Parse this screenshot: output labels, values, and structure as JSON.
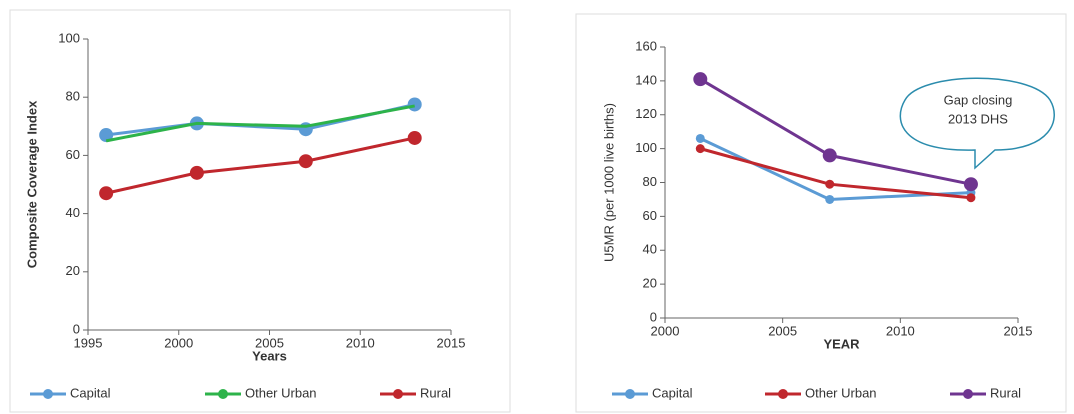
{
  "chart_data": [
    {
      "type": "line",
      "x_label": "Years",
      "y_label": "Composite Coverage Index",
      "xlim": [
        1995,
        2015
      ],
      "xticks": [
        1995,
        2000,
        2005,
        2010,
        2015
      ],
      "ylim": [
        0,
        100
      ],
      "yticks": [
        0,
        20,
        40,
        60,
        80,
        100
      ],
      "x": [
        1996,
        2001,
        2007,
        2013
      ],
      "series": [
        {
          "name": "Capital",
          "color": "#5b9bd5",
          "marker": true,
          "values": [
            67,
            71,
            69,
            77.5
          ]
        },
        {
          "name": "Other Urban",
          "color": "#2db34a",
          "marker": false,
          "values": [
            65,
            71,
            70,
            77
          ]
        },
        {
          "name": "Rural",
          "color": "#c0272d",
          "marker": true,
          "values": [
            47,
            54,
            58,
            66
          ]
        }
      ]
    },
    {
      "type": "line",
      "x_label": "YEAR",
      "y_label": "U5MR (per 1000 live births)",
      "xlim": [
        2000,
        2015
      ],
      "xticks": [
        2000,
        2005,
        2010,
        2015
      ],
      "ylim": [
        0,
        160
      ],
      "yticks": [
        0,
        20,
        40,
        60,
        80,
        100,
        120,
        140,
        160
      ],
      "x": [
        2001.5,
        2007,
        2013
      ],
      "annotation": [
        "Gap closing",
        "2013 DHS"
      ],
      "series": [
        {
          "name": "Capital",
          "color": "#5b9bd5",
          "marker": true,
          "values": [
            106,
            70,
            74
          ]
        },
        {
          "name": "Other Urban",
          "color": "#c0272d",
          "marker": true,
          "values": [
            100,
            79,
            71
          ]
        },
        {
          "name": "Rural",
          "color": "#6f3590",
          "marker": true,
          "values": [
            141,
            96,
            79
          ]
        }
      ]
    }
  ]
}
